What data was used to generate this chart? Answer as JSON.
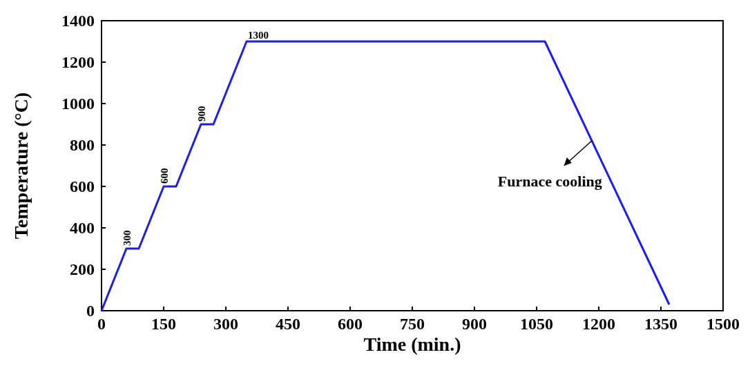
{
  "chart_data": {
    "type": "line",
    "xlabel": "Time (min.)",
    "ylabel": "Temperature (°C)",
    "x": [
      0,
      60,
      90,
      150,
      180,
      240,
      270,
      350,
      1070,
      1370
    ],
    "series": [
      {
        "color": "#1a1aff",
        "values": [
          0,
          300,
          300,
          600,
          600,
          900,
          900,
          1300,
          1300,
          30
        ],
        "value_labels": [
          null,
          "300",
          null,
          "600",
          null,
          "900",
          null,
          "1300",
          null,
          null
        ]
      }
    ],
    "xlim": [
      0,
      1500
    ],
    "xticks": [
      0,
      150,
      300,
      450,
      600,
      750,
      900,
      1050,
      1200,
      1350,
      1500
    ],
    "ylim": [
      0,
      1400
    ],
    "yticks": [
      0,
      200,
      400,
      600,
      800,
      1000,
      1200,
      1400
    ],
    "grid": false,
    "marker": "none",
    "line_style": "solid",
    "annotations": [
      {
        "text": "Furnace cooling",
        "x": 1183,
        "y": 820
      }
    ]
  }
}
